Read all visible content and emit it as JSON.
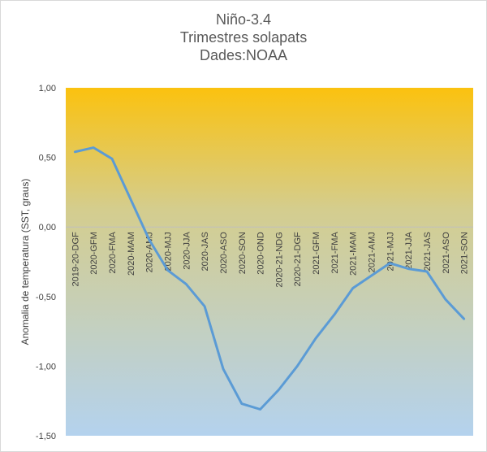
{
  "chart_data": {
    "type": "line",
    "title": [
      "Niño-3.4",
      "Trimestres solapats",
      "Dades:NOAA"
    ],
    "ylabel": "Anomalia de temperatura (SST, graus)",
    "xlabel": "",
    "ylim": [
      -1.5,
      1.0
    ],
    "yticks": [
      1.0,
      0.5,
      0.0,
      -0.5,
      -1.0,
      -1.5
    ],
    "ytick_labels": [
      "1,00",
      "0,50",
      "0,00",
      "-0,50",
      "-1,00",
      "-1,50"
    ],
    "grid": false,
    "legend": "none",
    "background_gradient": {
      "top": "#fbc20f",
      "bottom": "#b4d2ee"
    },
    "line_color": "#5b9bd5",
    "categories": [
      "2019-20-DGF",
      "2020-GFM",
      "2020-FMA",
      "2020-MAM",
      "2020-AMJ",
      "2020-MJJ",
      "2020-JJA",
      "2020-JAS",
      "2020-ASO",
      "2020-SON",
      "2020-OND",
      "2020-21-NDG",
      "2020-21-DGF",
      "2021-GFM",
      "2021-FMA",
      "2021-MAM",
      "2021-AMJ",
      "2021-MJJ",
      "2021-JJA",
      "2021-JAS",
      "2021-ASO",
      "2021-SON"
    ],
    "series": [
      {
        "values": [
          0.54,
          0.57,
          0.49,
          0.2,
          -0.09,
          -0.31,
          -0.41,
          -0.57,
          -1.02,
          -1.27,
          -1.31,
          -1.17,
          -1.0,
          -0.8,
          -0.63,
          -0.44,
          -0.35,
          -0.26,
          -0.3,
          -0.32,
          -0.52,
          -0.66
        ]
      }
    ]
  }
}
